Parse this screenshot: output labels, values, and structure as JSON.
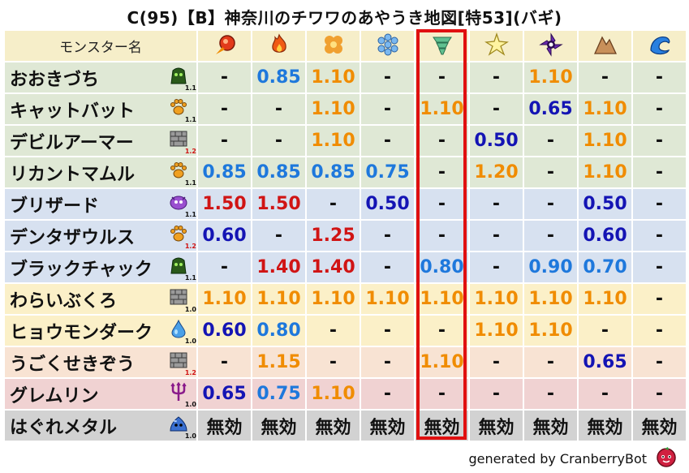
{
  "title": "C(95)【B】神奈川のチワワのあやうき地図[特53](バギ)",
  "header": {
    "name_label": "モンスター名",
    "elements": [
      "fire-ball",
      "flame",
      "explosion",
      "ice",
      "wind",
      "lightning",
      "dark",
      "earth",
      "water"
    ]
  },
  "colors": {
    "orange": "#f08c00",
    "blue": "#1e78dc",
    "darkblue": "#1414b4",
    "red": "#d01414",
    "black": "#111111",
    "highlight": "#e01010"
  },
  "rows": [
    {
      "name": "おおきづち",
      "icon": "slime-icon",
      "level": "1.1",
      "bg": "green",
      "cells": [
        [
          "-",
          "black"
        ],
        [
          "0.85",
          "blue"
        ],
        [
          "1.10",
          "orange"
        ],
        [
          "-",
          "black"
        ],
        [
          "-",
          "black"
        ],
        [
          "-",
          "black"
        ],
        [
          "1.10",
          "orange"
        ],
        [
          "-",
          "black"
        ],
        [
          "-",
          "black"
        ]
      ]
    },
    {
      "name": "キャットバット",
      "icon": "paw-icon",
      "level": "1.1",
      "bg": "green",
      "cells": [
        [
          "-",
          "black"
        ],
        [
          "-",
          "black"
        ],
        [
          "1.10",
          "orange"
        ],
        [
          "-",
          "black"
        ],
        [
          "1.10",
          "orange"
        ],
        [
          "-",
          "black"
        ],
        [
          "0.65",
          "darkblue"
        ],
        [
          "1.10",
          "orange"
        ],
        [
          "-",
          "black"
        ]
      ]
    },
    {
      "name": "デビルアーマー",
      "icon": "material-icon",
      "level": "1.2",
      "bg": "green",
      "cells": [
        [
          "-",
          "black"
        ],
        [
          "-",
          "black"
        ],
        [
          "1.10",
          "orange"
        ],
        [
          "-",
          "black"
        ],
        [
          "-",
          "black"
        ],
        [
          "0.50",
          "darkblue"
        ],
        [
          "-",
          "black"
        ],
        [
          "1.10",
          "orange"
        ],
        [
          "-",
          "black"
        ]
      ]
    },
    {
      "name": "リカントマムル",
      "icon": "paw-icon",
      "level": "1.1",
      "bg": "green",
      "cells": [
        [
          "0.85",
          "blue"
        ],
        [
          "0.85",
          "blue"
        ],
        [
          "0.85",
          "blue"
        ],
        [
          "0.75",
          "blue"
        ],
        [
          "-",
          "black"
        ],
        [
          "1.20",
          "orange"
        ],
        [
          "-",
          "black"
        ],
        [
          "1.10",
          "orange"
        ],
        [
          "-",
          "black"
        ]
      ]
    },
    {
      "name": "ブリザード",
      "icon": "demon-icon",
      "level": "1.1",
      "bg": "blue",
      "cells": [
        [
          "1.50",
          "red"
        ],
        [
          "1.50",
          "red"
        ],
        [
          "-",
          "black"
        ],
        [
          "0.50",
          "darkblue"
        ],
        [
          "-",
          "black"
        ],
        [
          "-",
          "black"
        ],
        [
          "-",
          "black"
        ],
        [
          "0.50",
          "darkblue"
        ],
        [
          "-",
          "black"
        ]
      ]
    },
    {
      "name": "デンタザウルス",
      "icon": "paw-icon",
      "level": "1.2",
      "bg": "blue",
      "cells": [
        [
          "0.60",
          "darkblue"
        ],
        [
          "-",
          "black"
        ],
        [
          "1.25",
          "red"
        ],
        [
          "-",
          "black"
        ],
        [
          "-",
          "black"
        ],
        [
          "-",
          "black"
        ],
        [
          "-",
          "black"
        ],
        [
          "0.60",
          "darkblue"
        ],
        [
          "-",
          "black"
        ]
      ]
    },
    {
      "name": "ブラックチャック",
      "icon": "slime-icon",
      "level": "1.1",
      "bg": "blue",
      "cells": [
        [
          "-",
          "black"
        ],
        [
          "1.40",
          "red"
        ],
        [
          "1.40",
          "red"
        ],
        [
          "-",
          "black"
        ],
        [
          "0.80",
          "blue"
        ],
        [
          "-",
          "black"
        ],
        [
          "0.90",
          "blue"
        ],
        [
          "0.70",
          "blue"
        ],
        [
          "-",
          "black"
        ]
      ]
    },
    {
      "name": "わらいぶくろ",
      "icon": "material-icon",
      "level": "1.0",
      "bg": "yellow",
      "cells": [
        [
          "1.10",
          "orange"
        ],
        [
          "1.10",
          "orange"
        ],
        [
          "1.10",
          "orange"
        ],
        [
          "1.10",
          "orange"
        ],
        [
          "1.10",
          "orange"
        ],
        [
          "1.10",
          "orange"
        ],
        [
          "1.10",
          "orange"
        ],
        [
          "1.10",
          "orange"
        ],
        [
          "-",
          "black"
        ]
      ]
    },
    {
      "name": "ヒョウモンダーク",
      "icon": "drop-icon",
      "level": "1.0",
      "bg": "yellow",
      "cells": [
        [
          "0.60",
          "darkblue"
        ],
        [
          "0.80",
          "blue"
        ],
        [
          "-",
          "black"
        ],
        [
          "-",
          "black"
        ],
        [
          "-",
          "black"
        ],
        [
          "1.10",
          "orange"
        ],
        [
          "1.10",
          "orange"
        ],
        [
          "-",
          "black"
        ],
        [
          "-",
          "black"
        ]
      ]
    },
    {
      "name": "うごくせきぞう",
      "icon": "material-icon",
      "level": "1.2",
      "bg": "peach",
      "cells": [
        [
          "-",
          "black"
        ],
        [
          "1.15",
          "orange"
        ],
        [
          "-",
          "black"
        ],
        [
          "-",
          "black"
        ],
        [
          "1.10",
          "orange"
        ],
        [
          "-",
          "black"
        ],
        [
          "-",
          "black"
        ],
        [
          "0.65",
          "darkblue"
        ],
        [
          "-",
          "black"
        ]
      ]
    },
    {
      "name": "グレムリン",
      "icon": "trident-icon",
      "level": "1.0",
      "bg": "pink",
      "cells": [
        [
          "0.65",
          "darkblue"
        ],
        [
          "0.75",
          "blue"
        ],
        [
          "1.10",
          "orange"
        ],
        [
          "-",
          "black"
        ],
        [
          "-",
          "black"
        ],
        [
          "-",
          "black"
        ],
        [
          "-",
          "black"
        ],
        [
          "-",
          "black"
        ],
        [
          "-",
          "black"
        ]
      ]
    },
    {
      "name": "はぐれメタル",
      "icon": "metal-slime-icon",
      "level": "1.0",
      "bg": "gray",
      "cells": [
        [
          "無効",
          "black"
        ],
        [
          "無効",
          "black"
        ],
        [
          "無効",
          "black"
        ],
        [
          "無効",
          "black"
        ],
        [
          "無効",
          "black"
        ],
        [
          "無効",
          "black"
        ],
        [
          "無効",
          "black"
        ],
        [
          "無効",
          "black"
        ],
        [
          "無効",
          "black"
        ]
      ]
    }
  ],
  "footer": "generated by CranberryBot"
}
